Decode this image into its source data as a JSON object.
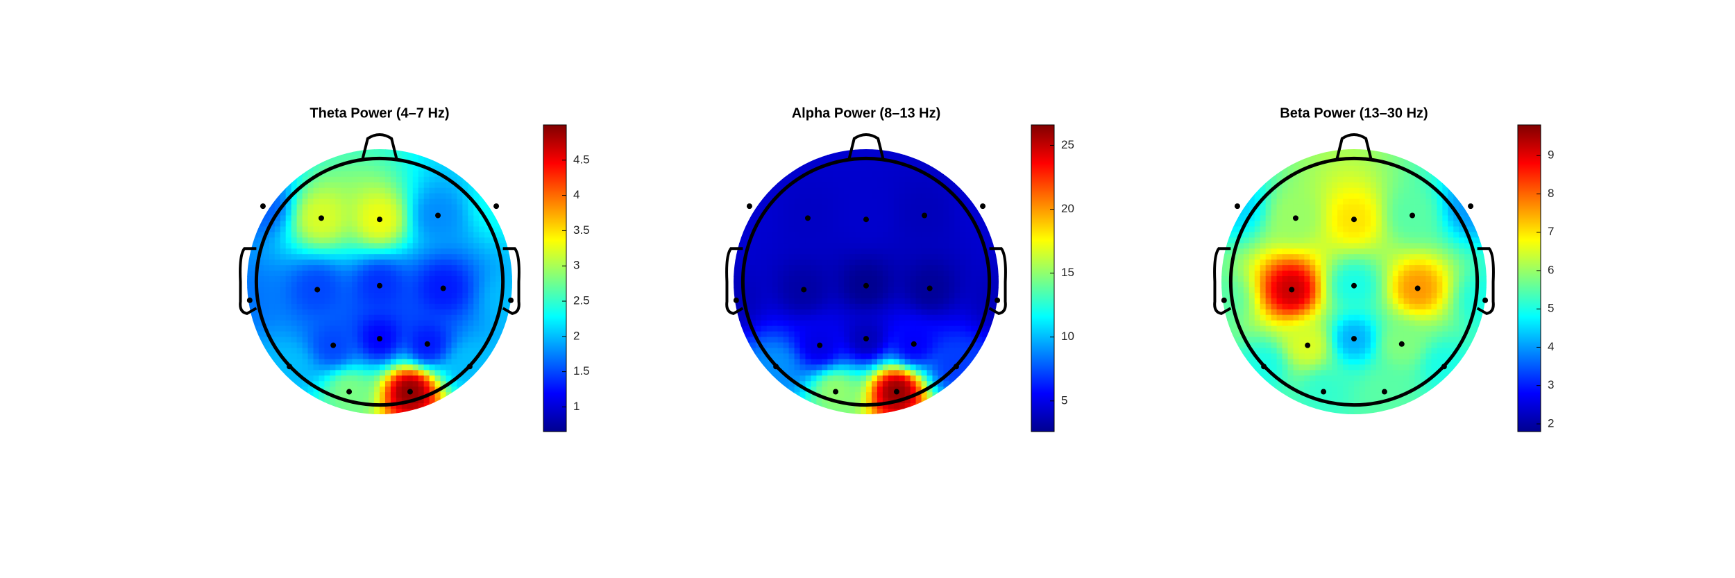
{
  "chart_data": [
    {
      "type": "topomap",
      "title": "Theta Power (4–7 Hz)",
      "colormap": "jet",
      "clim": [
        0.65,
        5.0
      ],
      "cticks": [
        1,
        1.5,
        2,
        2.5,
        3,
        3.5,
        4,
        4.5
      ],
      "values": [
        1.6,
        3.2,
        3.3,
        1.8,
        2.3,
        1.7,
        1.5,
        1.4,
        1.3,
        2.0,
        2.0,
        1.5,
        1.2,
        1.3,
        2.0,
        2.8,
        4.9
      ]
    },
    {
      "type": "topomap",
      "title": "Alpha Power (8–13 Hz)",
      "colormap": "jet",
      "clim": [
        2.6,
        26.6
      ],
      "cticks": [
        5,
        10,
        15,
        20,
        25
      ],
      "values": [
        4.5,
        4.2,
        4.4,
        4.0,
        4.5,
        4.0,
        3.5,
        3.0,
        3.2,
        4.0,
        9.0,
        5.0,
        4.0,
        5.5,
        7.0,
        15.0,
        26.0
      ]
    },
    {
      "type": "topomap",
      "title": "Beta Power (13–30 Hz)",
      "colormap": "jet",
      "clim": [
        1.8,
        9.8
      ],
      "cticks": [
        2,
        3,
        4,
        5,
        6,
        7,
        8,
        9
      ],
      "values": [
        4.5,
        6.0,
        7.0,
        5.5,
        4.0,
        5.5,
        9.2,
        5.0,
        7.6,
        5.0,
        5.0,
        6.5,
        4.2,
        5.8,
        5.0,
        5.2,
        5.5
      ]
    }
  ]
}
